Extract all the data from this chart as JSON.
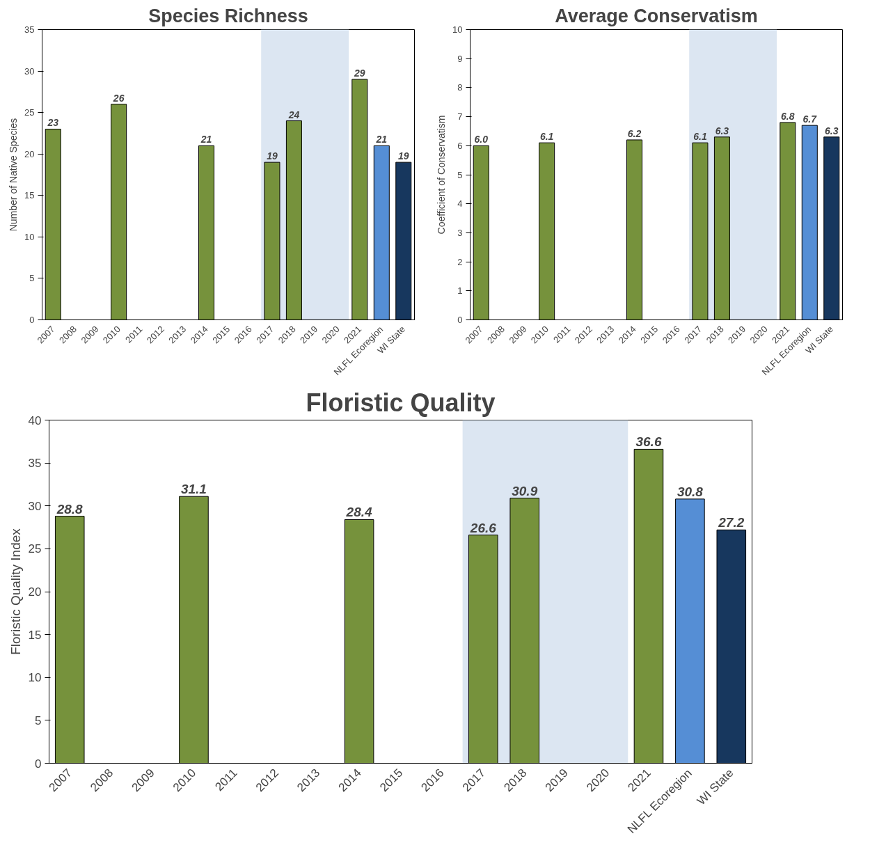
{
  "chart_data": [
    {
      "type": "bar",
      "title": "Species Richness",
      "ylabel": "Number of Native Species",
      "categories": [
        "2007",
        "2008",
        "2009",
        "2010",
        "2011",
        "2012",
        "2013",
        "2014",
        "2015",
        "2016",
        "2017",
        "2018",
        "2019",
        "2020",
        "2021",
        "NLFL Ecoregion",
        "WI State"
      ],
      "values": [
        23,
        null,
        null,
        26,
        null,
        null,
        null,
        21,
        null,
        null,
        19,
        24,
        null,
        null,
        29,
        21,
        19
      ],
      "colors": [
        "#76923c",
        "#76923c",
        "#76923c",
        "#76923c",
        "#76923c",
        "#76923c",
        "#76923c",
        "#76923c",
        "#76923c",
        "#76923c",
        "#76923c",
        "#76923c",
        "#76923c",
        "#76923c",
        "#76923c",
        "#558ed5",
        "#17375e"
      ],
      "value_labels": [
        "23",
        null,
        null,
        "26",
        null,
        null,
        null,
        "21",
        null,
        null,
        "19",
        "24",
        null,
        null,
        "29",
        "21",
        "19"
      ],
      "ylim": [
        0,
        35
      ],
      "yticks": [
        0,
        5,
        10,
        15,
        20,
        25,
        30,
        35
      ],
      "grid": false,
      "bands": [
        {
          "axis": "x",
          "from": "2017",
          "to": "2020",
          "color": "#dce6f2"
        }
      ]
    },
    {
      "type": "bar",
      "title": "Average Conservatism",
      "ylabel": "Coefficient of Conservatism",
      "categories": [
        "2007",
        "2008",
        "2009",
        "2010",
        "2011",
        "2012",
        "2013",
        "2014",
        "2015",
        "2016",
        "2017",
        "2018",
        "2019",
        "2020",
        "2021",
        "NLFL Ecoregion",
        "WI State"
      ],
      "values": [
        6.0,
        null,
        null,
        6.1,
        null,
        null,
        null,
        6.2,
        null,
        null,
        6.1,
        6.3,
        null,
        null,
        6.8,
        6.7,
        6.3
      ],
      "colors": [
        "#76923c",
        "#76923c",
        "#76923c",
        "#76923c",
        "#76923c",
        "#76923c",
        "#76923c",
        "#76923c",
        "#76923c",
        "#76923c",
        "#76923c",
        "#76923c",
        "#76923c",
        "#76923c",
        "#76923c",
        "#558ed5",
        "#17375e"
      ],
      "value_labels": [
        "6.0",
        null,
        null,
        "6.1",
        null,
        null,
        null,
        "6.2",
        null,
        null,
        "6.1",
        "6.3",
        null,
        null,
        "6.8",
        "6.7",
        "6.3"
      ],
      "ylim": [
        0,
        10
      ],
      "yticks": [
        0,
        1,
        2,
        3,
        4,
        5,
        6,
        7,
        8,
        9,
        10
      ],
      "grid": false,
      "bands": [
        {
          "axis": "x",
          "from": "2017",
          "to": "2020",
          "color": "#dce6f2"
        }
      ]
    },
    {
      "type": "bar",
      "title": "Floristic Quality",
      "ylabel": "Floristic Quality Index",
      "categories": [
        "2007",
        "2008",
        "2009",
        "2010",
        "2011",
        "2012",
        "2013",
        "2014",
        "2015",
        "2016",
        "2017",
        "2018",
        "2019",
        "2020",
        "2021",
        "NLFL Ecoregion",
        "WI State"
      ],
      "values": [
        28.8,
        null,
        null,
        31.1,
        null,
        null,
        null,
        28.4,
        null,
        null,
        26.6,
        30.9,
        null,
        null,
        36.6,
        30.8,
        27.2
      ],
      "colors": [
        "#76923c",
        "#76923c",
        "#76923c",
        "#76923c",
        "#76923c",
        "#76923c",
        "#76923c",
        "#76923c",
        "#76923c",
        "#76923c",
        "#76923c",
        "#76923c",
        "#76923c",
        "#76923c",
        "#76923c",
        "#558ed5",
        "#17375e"
      ],
      "value_labels": [
        "28.8",
        null,
        null,
        "31.1",
        null,
        null,
        null,
        "28.4",
        null,
        null,
        "26.6",
        "30.9",
        null,
        null,
        "36.6",
        "30.8",
        "27.2"
      ],
      "ylim": [
        0,
        40
      ],
      "yticks": [
        0,
        5,
        10,
        15,
        20,
        25,
        30,
        35,
        40
      ],
      "grid": false,
      "bands": [
        {
          "axis": "x",
          "from": "2017",
          "to": "2020",
          "color": "#dce6f2"
        }
      ]
    }
  ]
}
